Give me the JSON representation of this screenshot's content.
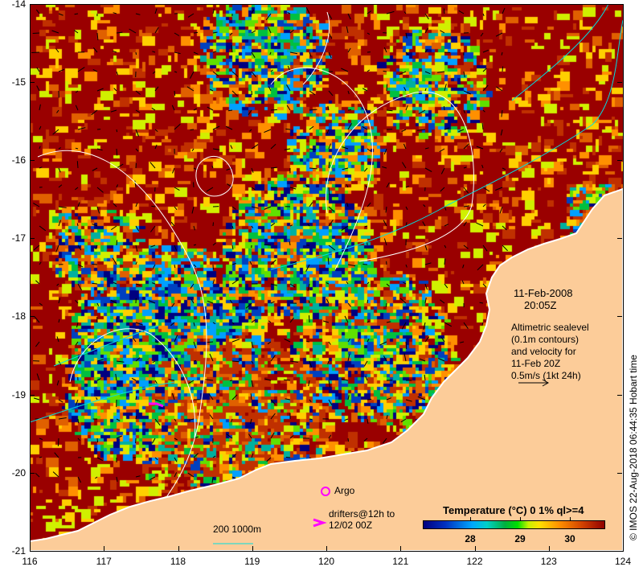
{
  "map": {
    "lon_ticks": [
      "116",
      "117",
      "118",
      "119",
      "120",
      "121",
      "122",
      "123",
      "124"
    ],
    "lat_ticks": [
      "-14",
      "-15",
      "-16",
      "-17",
      "-18",
      "-19",
      "-20",
      "-21"
    ],
    "date": "11-Feb-2008",
    "time": "20:05Z",
    "info_lines": [
      "Altimetric sealevel",
      "(0.1m contours)",
      "and velocity for",
      "11-Feb 20Z",
      "0.5m/s (1kt 24h)"
    ],
    "argo_label": "Argo",
    "drifters_line1": "drifters@12h to",
    "drifters_line2": "12/02 00Z",
    "scale_label": "200  1000m",
    "credit": "© IMOS 22-Aug-2018 06:44:35 Hobart time"
  },
  "colorbar": {
    "title": "Temperature (°C) 0 1% ql>=4",
    "ticks": [
      "28",
      "29",
      "30"
    ]
  },
  "colors": {
    "land": "#fccc99",
    "sea_warm": "#9a0000",
    "argo": "#ff00ff",
    "contour": "#ffffff",
    "isobath": "#00e0e0"
  }
}
